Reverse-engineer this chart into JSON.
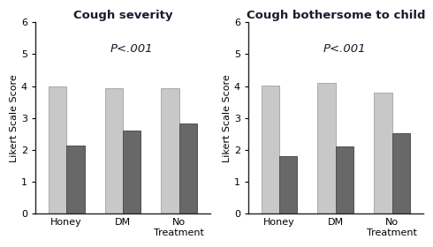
{
  "chart1": {
    "title": "Cough severity",
    "pvalue": "P<.001",
    "categories": [
      "Honey",
      "DM",
      "No\nTreatment"
    ],
    "before": [
      4.0,
      3.93,
      3.93
    ],
    "after": [
      2.15,
      2.6,
      2.82
    ]
  },
  "chart2": {
    "title": "Cough bothersome to child",
    "pvalue": "P<.001",
    "categories": [
      "Honey",
      "DM",
      "No\nTreatment"
    ],
    "before": [
      4.02,
      4.1,
      3.8
    ],
    "after": [
      1.82,
      2.1,
      2.52
    ]
  },
  "color_light": "#c8c8c8",
  "color_dark": "#686868",
  "color_light_edge": "#aaaaaa",
  "color_dark_edge": "#505050",
  "ylabel": "Likert Scale Score",
  "ylim": [
    0,
    6
  ],
  "yticks": [
    0,
    1,
    2,
    3,
    4,
    5,
    6
  ],
  "bar_width": 0.32,
  "title_color": "#1a1a2e",
  "pvalue_color": "#1a1a2e",
  "title_fontsize": 9.5,
  "pvalue_fontsize": 9.5,
  "ylabel_fontsize": 8,
  "tick_fontsize": 8,
  "background_color": "#ffffff"
}
